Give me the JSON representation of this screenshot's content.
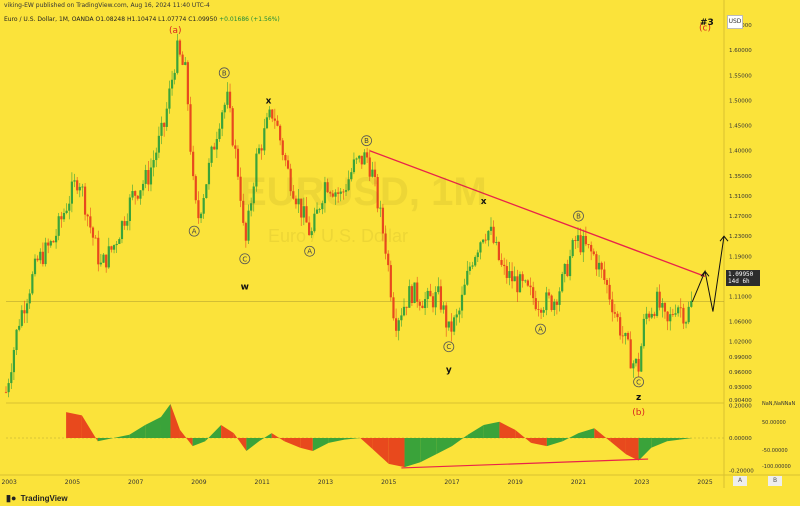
{
  "header": {
    "published": "viking-EW published on TradingView.com, Aug 16, 2024 11:40 UTC-4",
    "symbol_line": "Euro / U.S. Dollar, 1M, OANDA",
    "ohlc": "O1.08248 H1.10474 L1.07774 C1.09950",
    "change": "+0.01686 (+1.56%)"
  },
  "watermark": {
    "symbol": "EURUSD, 1M",
    "name": "Euro / U.S. Dollar"
  },
  "sheet_no": "#3",
  "currency_button": "USD",
  "brand": "TradingView",
  "last_price": {
    "value": "1.09950",
    "countdown": "14d 6h"
  },
  "scale_buttons": [
    "A",
    "B"
  ],
  "colors": {
    "background": "#fbe33a",
    "bull": "#3aa33a",
    "bear": "#e8491d",
    "trendline": "#e8234a",
    "label_red": "#d8261f"
  },
  "chart_data": [
    {
      "type": "candlestick",
      "x_unit": "year",
      "y_axis_side": "right",
      "ylim": [
        0.9,
        1.68
      ],
      "y_ticks": [
        "1.65000",
        "1.60000",
        "1.55000",
        "1.50000",
        "1.45000",
        "1.40000",
        "1.35000",
        "1.31000",
        "1.27000",
        "1.23000",
        "1.19000",
        "1.15000",
        "1.11000",
        "1.06000",
        "1.02000",
        "0.99000",
        "0.96000",
        "0.93000",
        "0.90400"
      ],
      "x_ticks": [
        "2003",
        "2005",
        "2007",
        "2009",
        "2011",
        "2013",
        "2015",
        "2017",
        "2019",
        "2021",
        "2023",
        "2025"
      ],
      "price_path": [
        [
          2002.9,
          0.92
        ],
        [
          2003.3,
          1.06
        ],
        [
          2003.9,
          1.18
        ],
        [
          2004.4,
          1.22
        ],
        [
          2004.8,
          1.29
        ],
        [
          2005.2,
          1.35
        ],
        [
          2005.6,
          1.24
        ],
        [
          2005.9,
          1.17
        ],
        [
          2006.3,
          1.21
        ],
        [
          2006.9,
          1.31
        ],
        [
          2007.4,
          1.35
        ],
        [
          2007.9,
          1.45
        ],
        [
          2008.3,
          1.6
        ],
        [
          2008.6,
          1.55
        ],
        [
          2008.8,
          1.34
        ],
        [
          2008.95,
          1.26
        ],
        [
          2009.3,
          1.36
        ],
        [
          2009.7,
          1.48
        ],
        [
          2009.9,
          1.5
        ],
        [
          2010.3,
          1.33
        ],
        [
          2010.45,
          1.2
        ],
        [
          2010.8,
          1.38
        ],
        [
          2011.2,
          1.46
        ],
        [
          2011.35,
          1.48
        ],
        [
          2011.8,
          1.36
        ],
        [
          2012.3,
          1.27
        ],
        [
          2012.55,
          1.23
        ],
        [
          2013.0,
          1.34
        ],
        [
          2013.5,
          1.31
        ],
        [
          2013.9,
          1.37
        ],
        [
          2014.3,
          1.39
        ],
        [
          2014.5,
          1.35
        ],
        [
          2014.9,
          1.21
        ],
        [
          2015.2,
          1.06
        ],
        [
          2015.7,
          1.12
        ],
        [
          2016.2,
          1.1
        ],
        [
          2016.6,
          1.11
        ],
        [
          2016.9,
          1.04
        ],
        [
          2017.2,
          1.07
        ],
        [
          2017.6,
          1.18
        ],
        [
          2018.0,
          1.24
        ],
        [
          2018.2,
          1.24
        ],
        [
          2018.6,
          1.16
        ],
        [
          2019.2,
          1.13
        ],
        [
          2019.7,
          1.1
        ],
        [
          2020.2,
          1.1
        ],
        [
          2020.5,
          1.14
        ],
        [
          2020.9,
          1.22
        ],
        [
          2021.0,
          1.22
        ],
        [
          2021.5,
          1.19
        ],
        [
          2021.9,
          1.13
        ],
        [
          2022.3,
          1.05
        ],
        [
          2022.7,
          0.98
        ],
        [
          2022.9,
          0.97
        ],
        [
          2023.1,
          1.07
        ],
        [
          2023.5,
          1.1
        ],
        [
          2023.8,
          1.05
        ],
        [
          2024.1,
          1.1
        ],
        [
          2024.4,
          1.07
        ],
        [
          2024.6,
          1.0995
        ]
      ],
      "trendline": [
        [
          2014.4,
          1.4
        ],
        [
          2025.0,
          1.15
        ]
      ],
      "projection": [
        [
          2024.6,
          1.0995
        ],
        [
          2025.0,
          1.16
        ],
        [
          2025.25,
          1.08
        ],
        [
          2025.6,
          1.23
        ]
      ],
      "wave_labels": [
        {
          "text": "(a)",
          "style": "red",
          "x": 2008.25,
          "y": 1.64
        },
        {
          "text": "B",
          "style": "circle",
          "x": 2009.8,
          "y": 1.555
        },
        {
          "text": "x",
          "style": "plain",
          "x": 2011.2,
          "y": 1.5
        },
        {
          "text": "B",
          "style": "circle",
          "x": 2014.3,
          "y": 1.42
        },
        {
          "text": "A",
          "style": "circle",
          "x": 2008.85,
          "y": 1.24
        },
        {
          "text": "C",
          "style": "circle",
          "x": 2010.45,
          "y": 1.185
        },
        {
          "text": "w",
          "style": "plain",
          "x": 2010.45,
          "y": 1.13
        },
        {
          "text": "A",
          "style": "circle",
          "x": 2012.5,
          "y": 1.2
        },
        {
          "text": "x",
          "style": "plain",
          "x": 2018.0,
          "y": 1.3
        },
        {
          "text": "B",
          "style": "circle",
          "x": 2021.0,
          "y": 1.27
        },
        {
          "text": "C",
          "style": "circle",
          "x": 2016.9,
          "y": 1.01
        },
        {
          "text": "y",
          "style": "plain",
          "x": 2016.9,
          "y": 0.965
        },
        {
          "text": "A",
          "style": "circle",
          "x": 2019.8,
          "y": 1.045
        },
        {
          "text": "C",
          "style": "circle",
          "x": 2022.9,
          "y": 0.94
        },
        {
          "text": "z",
          "style": "plain",
          "x": 2022.9,
          "y": 0.91
        },
        {
          "text": "(b)",
          "style": "red",
          "x": 2022.9,
          "y": 0.88
        },
        {
          "text": "(c)",
          "style": "red",
          "x": 2025.0,
          "y": 1.645
        }
      ]
    },
    {
      "type": "area",
      "ylim": [
        -0.21,
        0.21
      ],
      "y_ticks": [
        "0.20000",
        "0.00000",
        "-0.20000"
      ],
      "top_label": "NaN,NaNNaN",
      "right_ticks": [
        "50.00000",
        "-50.00000",
        "-100.00000"
      ],
      "series": [
        {
          "name": "",
          "x": [
            2004.8,
            2005.3,
            2005.8,
            2006.3,
            2006.8,
            2007.3,
            2007.8,
            2008.1,
            2008.4,
            2008.8,
            2009.2,
            2009.7,
            2010.1,
            2010.5,
            2010.9,
            2011.3,
            2011.7,
            2012.2,
            2012.6,
            2013.1,
            2013.6,
            2014.1,
            2014.5,
            2015.0,
            2015.5,
            2016.0,
            2016.5,
            2017.0,
            2017.5,
            2018.0,
            2018.5,
            2019.0,
            2019.5,
            2020.0,
            2020.5,
            2021.0,
            2021.5,
            2022.0,
            2022.5,
            2022.9,
            2023.3,
            2023.8,
            2024.2,
            2024.6
          ],
          "values": [
            0.16,
            0.14,
            -0.02,
            0.0,
            0.02,
            0.08,
            0.13,
            0.21,
            0.05,
            -0.05,
            -0.02,
            0.08,
            0.03,
            -0.08,
            -0.02,
            0.03,
            -0.02,
            -0.06,
            -0.08,
            -0.03,
            -0.01,
            0.0,
            -0.07,
            -0.16,
            -0.18,
            -0.15,
            -0.1,
            -0.05,
            0.02,
            0.08,
            0.1,
            0.05,
            -0.03,
            -0.05,
            -0.02,
            0.03,
            0.06,
            -0.02,
            -0.1,
            -0.14,
            -0.06,
            -0.02,
            -0.01,
            0.0
          ]
        }
      ],
      "divergence_line": [
        [
          2015.4,
          -0.185
        ],
        [
          2023.2,
          -0.13
        ]
      ]
    }
  ]
}
